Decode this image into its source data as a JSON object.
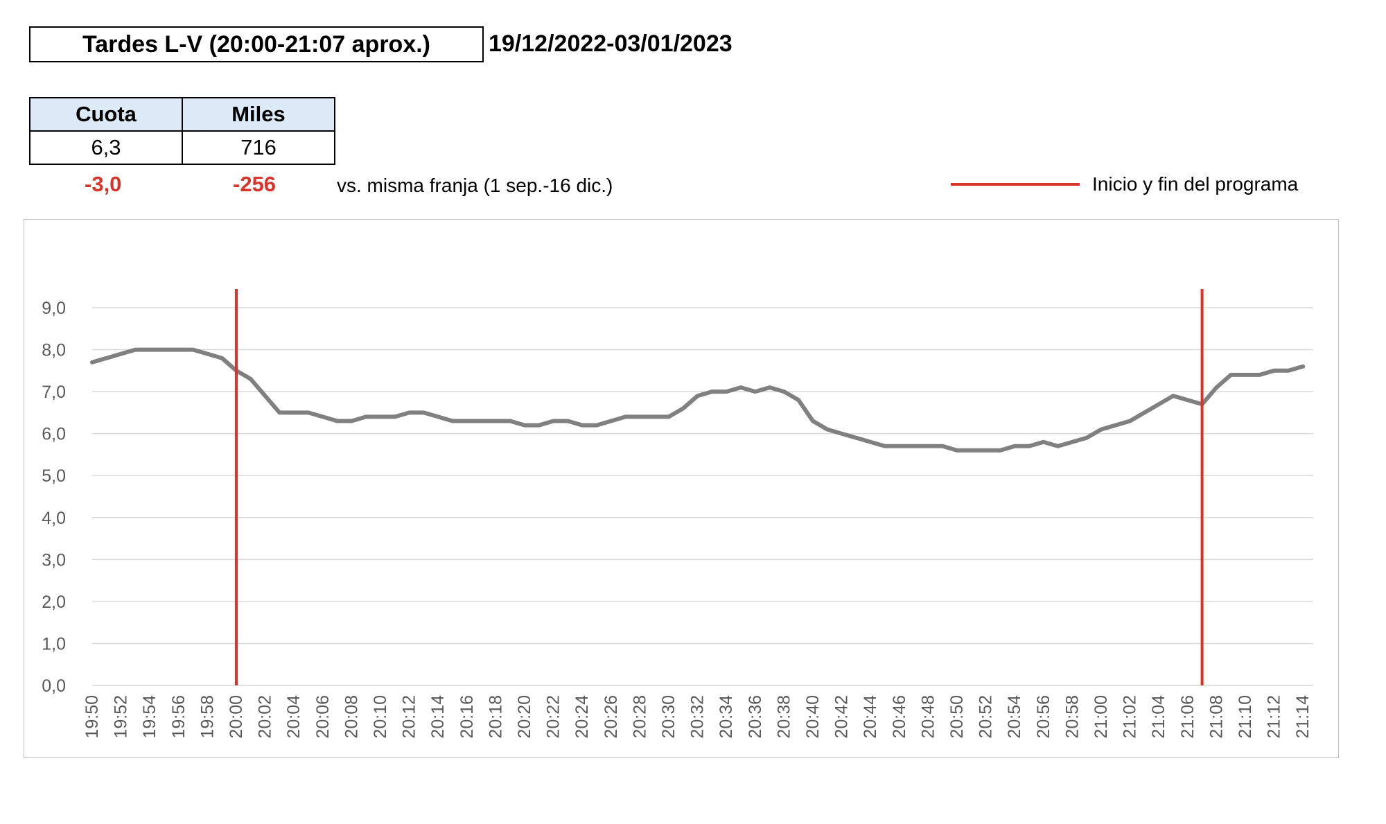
{
  "header": {
    "title": "Tardes L-V (20:00-21:07 aprox.)",
    "date_range": "19/12/2022-03/01/2023"
  },
  "kpi": {
    "headers": [
      "Cuota",
      "Miles"
    ],
    "values": [
      "6,3",
      "716"
    ],
    "deltas": [
      "-3,0",
      "-256"
    ],
    "comparison_note": "vs. misma franja (1 sep.-16 dic.)"
  },
  "legend": {
    "label": "Inicio y fin del programa",
    "color": "#d9342b"
  },
  "chart_data": {
    "type": "line",
    "title": "",
    "xlabel": "",
    "ylabel": "",
    "ylim": [
      0,
      9
    ],
    "y_ticks": [
      "0,0",
      "1,0",
      "2,0",
      "3,0",
      "4,0",
      "5,0",
      "6,0",
      "7,0",
      "8,0",
      "9,0"
    ],
    "grid": true,
    "x_tick_labels": [
      "19:50",
      "19:52",
      "19:54",
      "19:56",
      "19:58",
      "20:00",
      "20:02",
      "20:04",
      "20:06",
      "20:08",
      "20:10",
      "20:12",
      "20:14",
      "20:16",
      "20:18",
      "20:20",
      "20:22",
      "20:24",
      "20:26",
      "20:28",
      "20:30",
      "20:32",
      "20:34",
      "20:36",
      "20:38",
      "20:40",
      "20:42",
      "20:44",
      "20:46",
      "20:48",
      "20:50",
      "20:52",
      "20:54",
      "20:56",
      "20:58",
      "21:00",
      "21:02",
      "21:04",
      "21:06",
      "21:08",
      "21:10",
      "21:12",
      "21:14"
    ],
    "x_start": "19:50",
    "series": [
      {
        "color": "#808080",
        "values": [
          7.7,
          7.8,
          7.9,
          8.0,
          8.0,
          8.0,
          8.0,
          8.0,
          7.9,
          7.8,
          7.5,
          7.3,
          6.9,
          6.5,
          6.5,
          6.5,
          6.4,
          6.3,
          6.3,
          6.4,
          6.4,
          6.4,
          6.5,
          6.5,
          6.4,
          6.3,
          6.3,
          6.3,
          6.3,
          6.3,
          6.2,
          6.2,
          6.3,
          6.3,
          6.2,
          6.2,
          6.3,
          6.4,
          6.4,
          6.4,
          6.4,
          6.6,
          6.9,
          7.0,
          7.0,
          7.1,
          7.0,
          7.1,
          7.0,
          6.8,
          6.3,
          6.1,
          6.0,
          5.9,
          5.8,
          5.7,
          5.7,
          5.7,
          5.7,
          5.7,
          5.6,
          5.6,
          5.6,
          5.6,
          5.7,
          5.7,
          5.8,
          5.7,
          5.8,
          5.9,
          6.1,
          6.2,
          6.3,
          6.5,
          6.7,
          6.9,
          6.8,
          6.7,
          7.1,
          7.4,
          7.4,
          7.4,
          7.5,
          7.5,
          7.6
        ]
      }
    ],
    "markers": [
      {
        "label": "Inicio y fin del programa",
        "x": "20:00",
        "color": "#d9342b"
      },
      {
        "label": "Inicio y fin del programa",
        "x": "21:07",
        "color": "#d9342b"
      }
    ]
  }
}
